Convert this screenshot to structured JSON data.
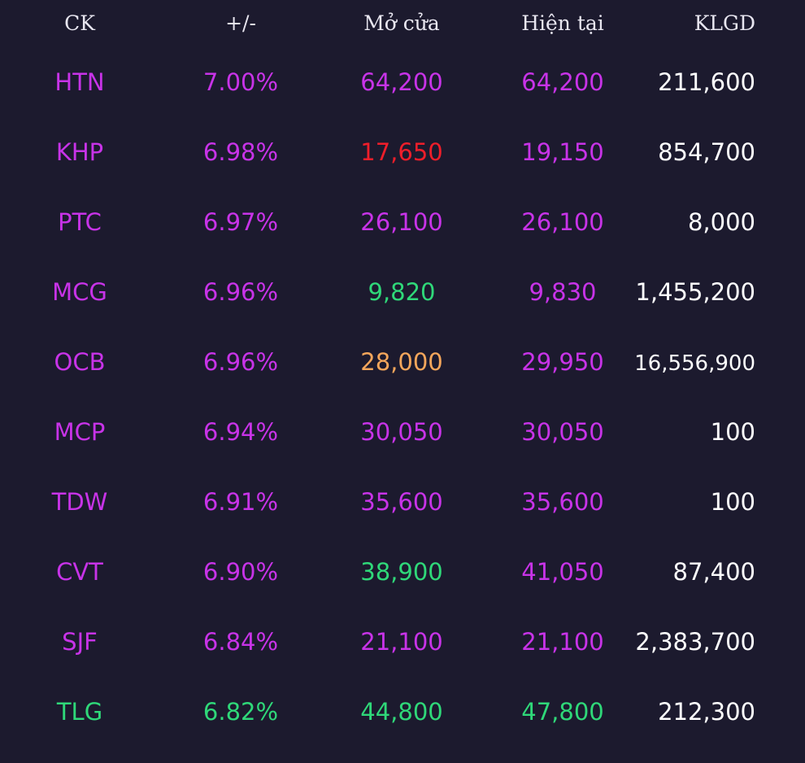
{
  "colors": {
    "background": "#1c1a2e",
    "purple": "#c833e8",
    "red": "#ef1e2a",
    "green": "#2fd879",
    "orange": "#f4a65b",
    "white": "#ffffff"
  },
  "headers": {
    "ck": "CK",
    "change": "+/-",
    "open": "Mở cửa",
    "current": "Hiện tại",
    "volume": "KLGD"
  },
  "rows": [
    {
      "ck": "HTN",
      "change": "7.00%",
      "open": "64,200",
      "current": "64,200",
      "volume": "211,600",
      "color": "purple",
      "open_color": "purple"
    },
    {
      "ck": "KHP",
      "change": "6.98%",
      "open": "17,650",
      "current": "19,150",
      "volume": "854,700",
      "color": "purple",
      "open_color": "red"
    },
    {
      "ck": "PTC",
      "change": "6.97%",
      "open": "26,100",
      "current": "26,100",
      "volume": "8,000",
      "color": "purple",
      "open_color": "purple"
    },
    {
      "ck": "MCG",
      "change": "6.96%",
      "open": "9,820",
      "current": "9,830",
      "volume": "1,455,200",
      "color": "purple",
      "open_color": "green"
    },
    {
      "ck": "OCB",
      "change": "6.96%",
      "open": "28,000",
      "current": "29,950",
      "volume": "16,556,900",
      "color": "purple",
      "open_color": "orange"
    },
    {
      "ck": "MCP",
      "change": "6.94%",
      "open": "30,050",
      "current": "30,050",
      "volume": "100",
      "color": "purple",
      "open_color": "purple"
    },
    {
      "ck": "TDW",
      "change": "6.91%",
      "open": "35,600",
      "current": "35,600",
      "volume": "100",
      "color": "purple",
      "open_color": "purple"
    },
    {
      "ck": "CVT",
      "change": "6.90%",
      "open": "38,900",
      "current": "41,050",
      "volume": "87,400",
      "color": "purple",
      "open_color": "green"
    },
    {
      "ck": "SJF",
      "change": "6.84%",
      "open": "21,100",
      "current": "21,100",
      "volume": "2,383,700",
      "color": "purple",
      "open_color": "purple"
    },
    {
      "ck": "TLG",
      "change": "6.82%",
      "open": "44,800",
      "current": "47,800",
      "volume": "212,300",
      "color": "green",
      "open_color": "green"
    }
  ]
}
